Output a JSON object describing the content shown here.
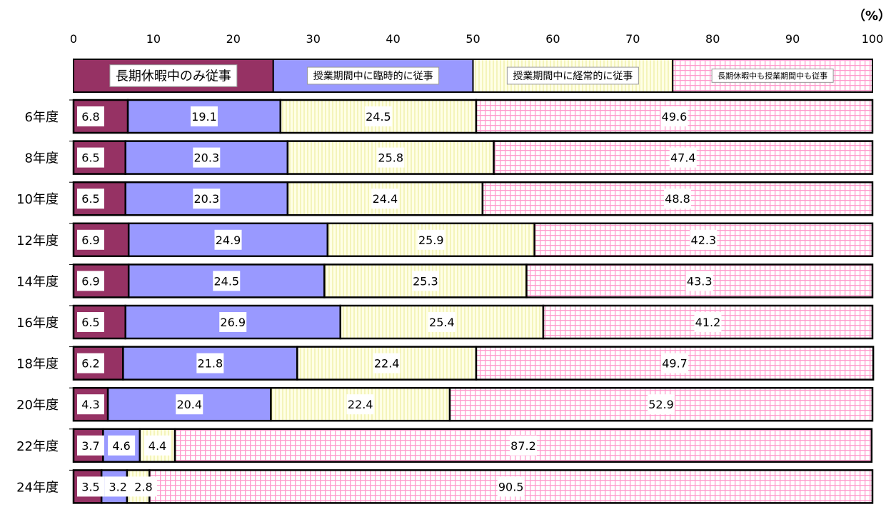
{
  "title": "",
  "chart_data": {
    "type": "bar",
    "orientation": "horizontal",
    "stacked": true,
    "unit_label": "（%）",
    "xlim": [
      0,
      100
    ],
    "x_ticks": [
      0,
      10,
      20,
      30,
      40,
      50,
      60,
      70,
      80,
      90,
      100
    ],
    "legend_placement": "top",
    "categories": [
      "6年度",
      "8年度",
      "10年度",
      "12年度",
      "14年度",
      "16年度",
      "18年度",
      "20年度",
      "22年度",
      "24年度"
    ],
    "series": [
      {
        "name": "長期休暇中のみ従事",
        "color": "#963264",
        "pattern": "solid",
        "values": [
          6.8,
          6.5,
          6.5,
          6.9,
          6.9,
          6.5,
          6.2,
          4.3,
          3.7,
          3.5
        ]
      },
      {
        "name": "授業期間中に臨時的に従事",
        "color": "#9999ff",
        "pattern": "solid",
        "values": [
          19.1,
          20.3,
          20.3,
          24.9,
          24.5,
          26.9,
          21.8,
          20.4,
          4.6,
          3.2
        ]
      },
      {
        "name": "授業期間中に経常的に従事",
        "color": "#ffffcc",
        "pattern": "vertical-lines",
        "values": [
          24.5,
          25.8,
          24.4,
          25.9,
          25.3,
          25.4,
          22.4,
          22.4,
          4.4,
          2.8
        ]
      },
      {
        "name": "長期休暇中も授業期間中も従事",
        "color": "#ff99cc",
        "pattern": "grid",
        "values": [
          49.6,
          47.4,
          48.8,
          42.3,
          43.3,
          41.2,
          49.7,
          52.9,
          87.2,
          90.5
        ]
      }
    ]
  }
}
